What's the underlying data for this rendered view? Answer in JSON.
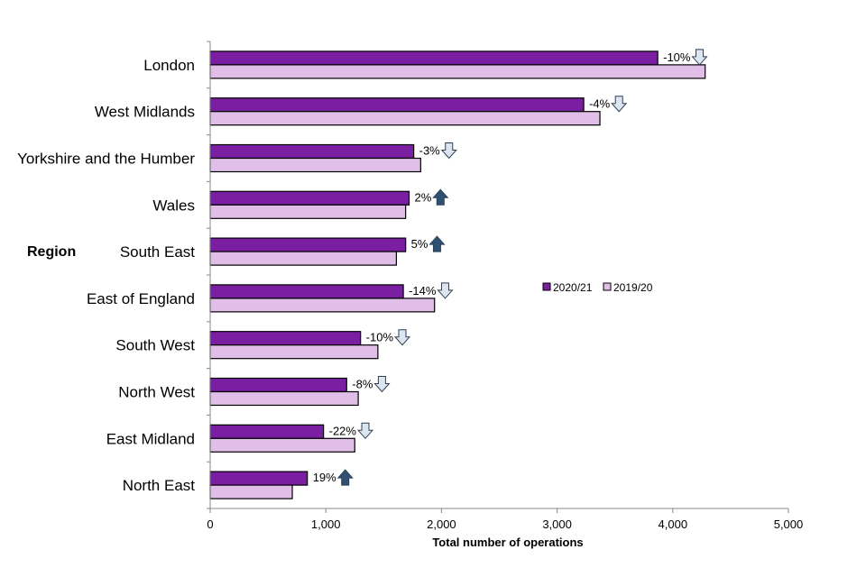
{
  "chart_data": {
    "type": "bar",
    "orientation": "horizontal",
    "y_group_label": "Region",
    "xlabel": "Total number of operations",
    "xlim": [
      0,
      5000
    ],
    "xticks": [
      0,
      1000,
      2000,
      3000,
      4000,
      5000
    ],
    "xtick_labels": [
      "0",
      "1,000",
      "2,000",
      "3,000",
      "4,000",
      "5,000"
    ],
    "categories": [
      "London",
      "West Midlands",
      "Yorkshire and the Humber",
      "Wales",
      "South East",
      "East of England",
      "South West",
      "North West",
      "East Midland",
      "North East"
    ],
    "series": [
      {
        "name": "2020/21",
        "color": "#7b1fa2",
        "values": [
          3870,
          3230,
          1760,
          1720,
          1690,
          1670,
          1300,
          1180,
          980,
          840
        ]
      },
      {
        "name": "2019/20",
        "color": "#e1bee7",
        "values": [
          4280,
          3370,
          1820,
          1690,
          1610,
          1940,
          1450,
          1280,
          1250,
          710
        ]
      }
    ],
    "annotations": [
      {
        "text": "-10%",
        "direction": "down"
      },
      {
        "text": "-4%",
        "direction": "down"
      },
      {
        "text": "-3%",
        "direction": "down"
      },
      {
        "text": "2%",
        "direction": "up"
      },
      {
        "text": "5%",
        "direction": "up"
      },
      {
        "text": "-14%",
        "direction": "down"
      },
      {
        "text": "-10%",
        "direction": "down"
      },
      {
        "text": "-8%",
        "direction": "down"
      },
      {
        "text": "-22%",
        "direction": "down"
      },
      {
        "text": "19%",
        "direction": "up"
      }
    ],
    "legend": {
      "placement": "right"
    },
    "arrow_colors": {
      "up": "#2e5073",
      "down": "#dce6f0"
    },
    "grid": false
  }
}
